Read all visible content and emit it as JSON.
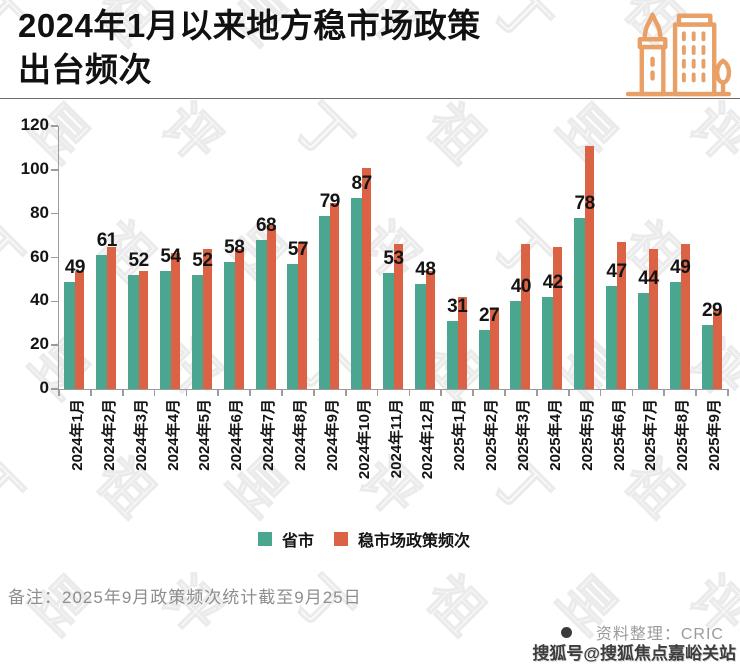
{
  "header": {
    "title_line1": "2024年1月以来地方稳市场政策",
    "title_line2": "出台频次"
  },
  "chart_data": {
    "type": "bar",
    "title": "2024年1月以来地方稳市场政策出台频次",
    "categories": [
      "2024年1月",
      "2024年2月",
      "2024年3月",
      "2024年4月",
      "2024年5月",
      "2024年6月",
      "2024年7月",
      "2024年8月",
      "2024年9月",
      "2024年10月",
      "2024年11月",
      "2024年12月",
      "2025年1月",
      "2025年2月",
      "2025年3月",
      "2025年4月",
      "2025年5月",
      "2025年6月",
      "2025年7月",
      "2025年8月",
      "2025年9月"
    ],
    "series": [
      {
        "name": "省市",
        "color": "#4BA690",
        "values": [
          49,
          61,
          52,
          54,
          52,
          58,
          68,
          57,
          79,
          87,
          53,
          48,
          31,
          27,
          40,
          42,
          78,
          47,
          44,
          49,
          29
        ]
      },
      {
        "name": "稳市场政策频次",
        "color": "#DC6245",
        "values": [
          54,
          65,
          54,
          62,
          64,
          64,
          75,
          67,
          85,
          101,
          66,
          54,
          42,
          37,
          66,
          65,
          111,
          67,
          64,
          66,
          36
        ]
      }
    ],
    "value_labels_series": "省市",
    "ylim": [
      0,
      120
    ],
    "yticks": [
      0,
      20,
      40,
      60,
      80,
      100,
      120
    ],
    "grid": false,
    "legend_position": "bottom"
  },
  "footer": {
    "note": "备注：2025年9月政策频次统计截至9月25日",
    "credit": "资料整理：CRIC",
    "stamp": "搜狐号@搜狐焦点嘉峪关站"
  },
  "watermark": {
    "characters": [
      "丁",
      "祖",
      "昱",
      "评"
    ]
  },
  "colors": {
    "provinces_bar": "#4BA690",
    "policy_bar": "#DC6245",
    "icon_orange": "#E9A066"
  }
}
